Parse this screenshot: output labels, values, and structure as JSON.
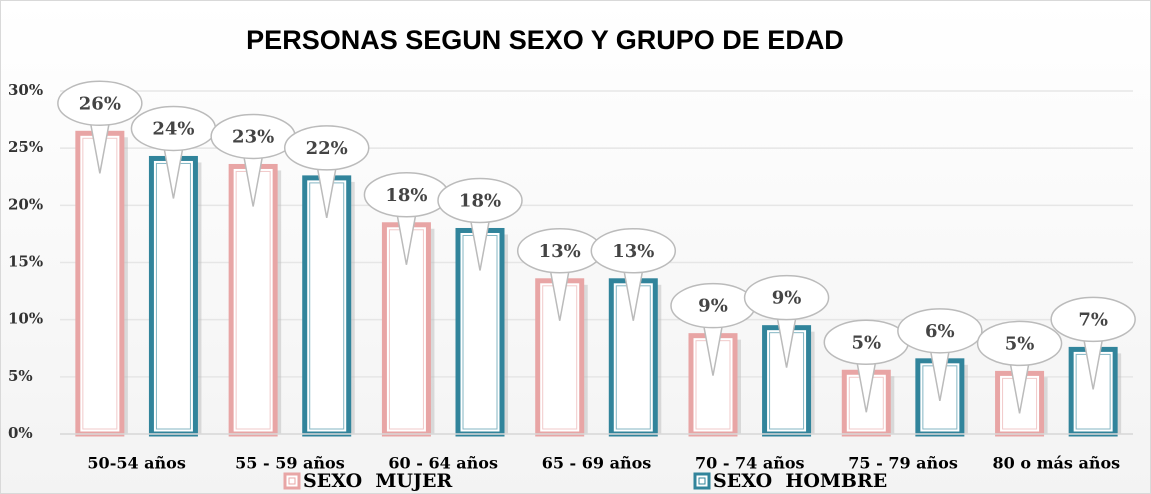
{
  "chart_data": {
    "type": "bar",
    "title": "PERSONAS SEGUN SEXO Y GRUPO DE EDAD",
    "categories": [
      "50-54 años",
      "55 - 59 años",
      "60 - 64 años",
      "65 - 69 años",
      "70 - 74 años",
      "75 - 79 años",
      "80 o más años"
    ],
    "series": [
      {
        "name": "SEXO  MUJER",
        "color": "#e8a5a5",
        "values": [
          26.3,
          23.4,
          18.3,
          13.4,
          8.6,
          5.4,
          5.3
        ],
        "value_labels": [
          "26%",
          "23%",
          "18%",
          "13%",
          "9%",
          "5%",
          "5%"
        ]
      },
      {
        "name": "SEXO  HOMBRE",
        "color": "#31849b",
        "values": [
          24.1,
          22.4,
          17.8,
          13.4,
          9.3,
          6.4,
          7.4
        ],
        "value_labels": [
          "24%",
          "22%",
          "18%",
          "13%",
          "9%",
          "6%",
          "7%"
        ]
      }
    ],
    "ylim": [
      0,
      30
    ],
    "yticks": [
      {
        "value": 0,
        "label": "0%"
      },
      {
        "value": 5,
        "label": "5%"
      },
      {
        "value": 10,
        "label": "10%"
      },
      {
        "value": 15,
        "label": "15%"
      },
      {
        "value": 20,
        "label": "20%"
      },
      {
        "value": 25,
        "label": "25%"
      },
      {
        "value": 30,
        "label": "30%"
      }
    ],
    "grid": true,
    "legend": "bottom"
  }
}
